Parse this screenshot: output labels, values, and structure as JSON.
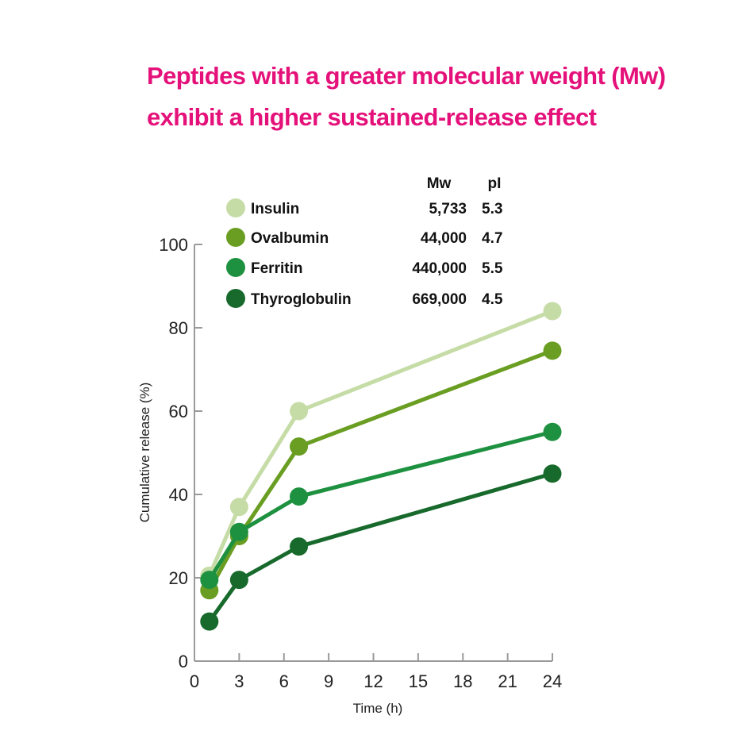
{
  "title": {
    "line1": "Peptides with a greater molecular weight (Mw)",
    "line2": "exhibit a higher sustained-release effect",
    "color": "#e5117a"
  },
  "chart_data": {
    "type": "line",
    "xlabel": "Time (h)",
    "ylabel": "Cumulative release (%)",
    "xlim": [
      0,
      24
    ],
    "ylim": [
      0,
      100
    ],
    "x_ticks": [
      0,
      3,
      6,
      9,
      12,
      15,
      18,
      21,
      24
    ],
    "y_ticks": [
      0,
      20,
      40,
      60,
      80,
      100
    ],
    "grid": false,
    "legend_position": "top-left",
    "legend_headers": {
      "mw": "Mw",
      "pi": "pI"
    },
    "series": [
      {
        "name": "Insulin",
        "mw": "5,733",
        "pi": "5.3",
        "color": "#c6dca6",
        "x": [
          1,
          3,
          7,
          24
        ],
        "y": [
          20.5,
          37,
          60,
          84
        ]
      },
      {
        "name": "Ovalbumin",
        "mw": "44,000",
        "pi": "4.7",
        "color": "#6a9e22",
        "x": [
          1,
          3,
          7,
          24
        ],
        "y": [
          17,
          30,
          51.5,
          74.5
        ]
      },
      {
        "name": "Ferritin",
        "mw": "440,000",
        "pi": "5.5",
        "color": "#1e9140",
        "x": [
          1,
          3,
          7,
          24
        ],
        "y": [
          19.5,
          31,
          39.5,
          55
        ]
      },
      {
        "name": "Thyroglobulin",
        "mw": "669,000",
        "pi": "4.5",
        "color": "#176a2c",
        "x": [
          1,
          3,
          7,
          24
        ],
        "y": [
          9.5,
          19.5,
          27.5,
          45
        ]
      }
    ]
  }
}
